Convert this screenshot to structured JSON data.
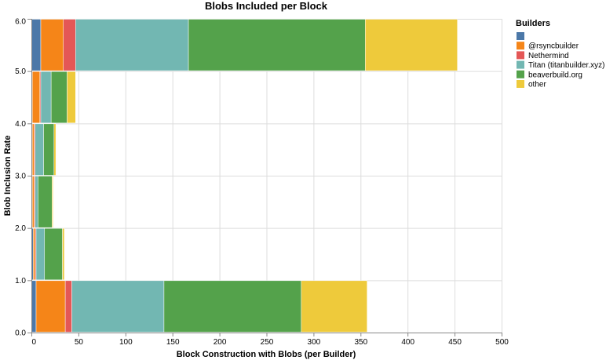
{
  "chart_data": {
    "type": "bar",
    "orientation": "horizontal",
    "stacked": true,
    "title": "Blobs Included per Block",
    "xlabel": "Block Construction with Blobs (per Builder)",
    "ylabel": "Blob Inclusion Rate",
    "xlim": [
      0,
      500
    ],
    "ylim": [
      0,
      6
    ],
    "x_ticks": [
      "0",
      "50",
      "100",
      "150",
      "200",
      "250",
      "300",
      "350",
      "400",
      "450",
      "500"
    ],
    "y_ticks": [
      "0.0",
      "1.0",
      "2.0",
      "3.0",
      "4.0",
      "5.0",
      "6.0"
    ],
    "categories": [
      1,
      2,
      3,
      4,
      5,
      6
    ],
    "grid": true,
    "legend_position": "right",
    "legend_title": "Builders",
    "series": [
      {
        "name": "",
        "color": "#4c78a8",
        "values": [
          5,
          2,
          1,
          1,
          1,
          10
        ]
      },
      {
        "name": "@rsyncbuilder",
        "color": "#f58518",
        "values": [
          31,
          2,
          2,
          2,
          8,
          24
        ]
      },
      {
        "name": "Nethermind",
        "color": "#e45756",
        "values": [
          7,
          1,
          1,
          1,
          1,
          13
        ]
      },
      {
        "name": "Titan (titanbuilder.xyz)",
        "color": "#72b7b2",
        "values": [
          98,
          9,
          3,
          9,
          11,
          120
        ]
      },
      {
        "name": "beaverbuild.org",
        "color": "#54a24b",
        "values": [
          146,
          19,
          15,
          11,
          17,
          188
        ]
      },
      {
        "name": "other",
        "color": "#eeca3b",
        "values": [
          70,
          2,
          1,
          2,
          9,
          98
        ]
      }
    ]
  }
}
